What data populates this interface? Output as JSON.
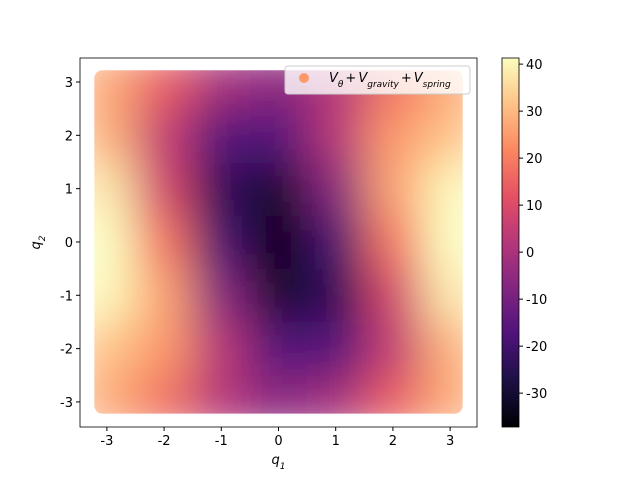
{
  "chart_data": {
    "type": "heatmap",
    "x": [
      -3,
      -2,
      -1,
      0,
      1,
      2,
      3
    ],
    "y": [
      -3,
      -2,
      -1,
      0,
      1,
      2,
      3
    ],
    "z": [
      [
        27.6,
        17.4,
        2.3,
        -5.9,
        -0.5,
        14.3,
        27.1
      ],
      [
        31.7,
        24.6,
        2.4,
        -16.8,
        -16,
        4.8,
        28.6
      ],
      [
        40.5,
        26.3,
        -6.9,
        -30.7,
        -23.9,
        7.9,
        37.7
      ],
      [
        43.8,
        18.6,
        -19.2,
        -37,
        -19.2,
        18.6,
        43.8
      ],
      [
        37.7,
        7.9,
        -23.9,
        -30.7,
        -6.9,
        26.3,
        40.5
      ],
      [
        28.6,
        4.8,
        -16,
        -16.8,
        2.4,
        24.6,
        31.7
      ],
      [
        27.1,
        14.3,
        -0.5,
        -5.9,
        2.3,
        17.4,
        27.6
      ]
    ],
    "colormap": "magma",
    "clim": [
      -37.2,
      41.3
    ],
    "cticks": [
      -30,
      -20,
      -10,
      0,
      10,
      20,
      30,
      40
    ],
    "xlim": [
      -3.47,
      3.47
    ],
    "xticks": [
      -3,
      -2,
      -1,
      0,
      1,
      2,
      3
    ],
    "ylim": [
      -3.47,
      3.45
    ],
    "yticks": [
      -3,
      -2,
      -1,
      0,
      1,
      2,
      3
    ],
    "xlabel": {
      "base": "q",
      "sub": "1"
    },
    "ylabel": {
      "base": "q",
      "sub": "2"
    },
    "legend": {
      "color": "#fc9a6a",
      "join": "+",
      "terms": [
        {
          "base": "V",
          "sub": "θ"
        },
        {
          "base": "V",
          "sub": "gravity"
        },
        {
          "base": "V",
          "sub": "spring"
        }
      ]
    },
    "legend_corner": "upper right"
  }
}
